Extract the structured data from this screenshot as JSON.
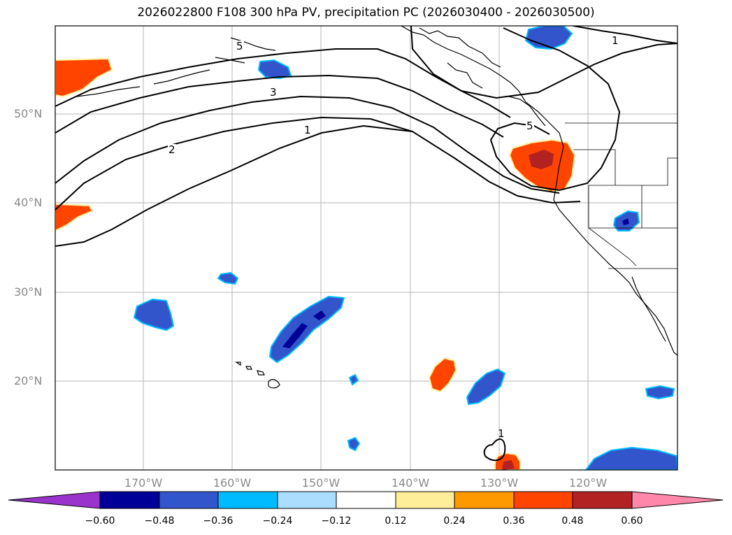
{
  "title": "2026022800 F108 300 hPa PV, precipitation PC (2026030400 - 2026030500)",
  "lat_labels": [
    "50°N",
    "40°N",
    "30°N",
    "20°N"
  ],
  "lon_labels": [
    "170°W",
    "160°W",
    "150°W",
    "140°W",
    "130°W",
    "120°W"
  ],
  "contour_labels": [
    "5",
    "3",
    "1",
    "2",
    "1",
    "5",
    "1"
  ],
  "colorbar": {
    "tick_labels": [
      "−0.60",
      "−0.48",
      "−0.36",
      "−0.24",
      "−0.12",
      "0.12",
      "0.24",
      "0.36",
      "0.48",
      "0.60"
    ],
    "colors": [
      "#9933cc",
      "#000099",
      "#3355cc",
      "#00bbff",
      "#aaddff",
      "#ffffff",
      "#ffee99",
      "#ff9900",
      "#ff4400",
      "#b22222",
      "#ff88aa"
    ]
  }
}
